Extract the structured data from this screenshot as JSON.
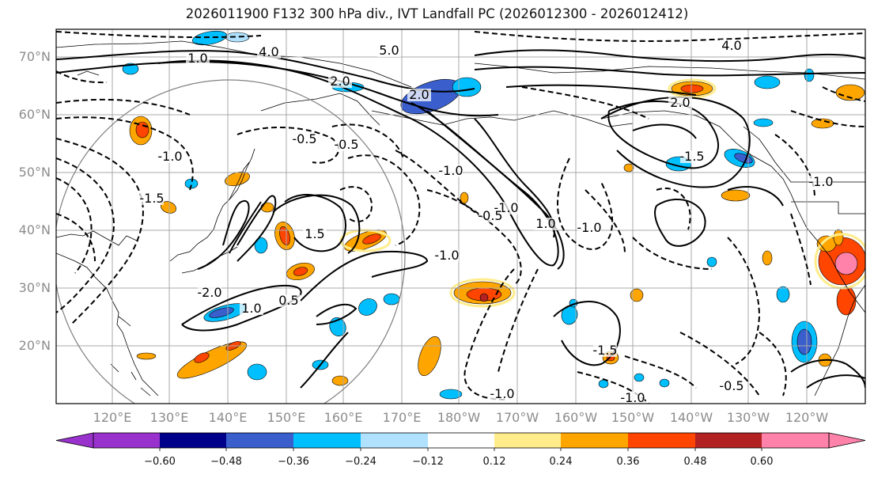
{
  "title": "2026011900 F132 300 hPa div., IVT Landfall PC (2026012300 - 2026012412)",
  "lat_labels": [
    "70°N",
    "60°N",
    "50°N",
    "40°N",
    "30°N",
    "20°N"
  ],
  "lon_labels": [
    "120°E",
    "130°E",
    "140°E",
    "150°E",
    "160°E",
    "170°E",
    "180°W",
    "170°W",
    "160°W",
    "150°W",
    "140°W",
    "130°W",
    "120°W"
  ],
  "contour_labels": [
    "-0.5",
    "-0.5",
    "-1.0",
    "-1.0",
    "-1.5",
    "-1.0",
    "-2.0",
    "1.0",
    "1.5",
    "2.0",
    "2.0",
    "4.0",
    "5.0",
    "4.0",
    "2.0",
    "1.0",
    "-0.5",
    "-1.0",
    "-1.5",
    "-1.0",
    "1.0",
    "0.5",
    "-1.0",
    "-1.0",
    "-1.5",
    "-0.5",
    "-1.0"
  ],
  "colorbar": {
    "colors": [
      "#9932cc",
      "#00008b",
      "#3a5fcd",
      "#00bfff",
      "#b0e2ff",
      "#ffffff",
      "#ffec8b",
      "#ffa500",
      "#ff4500",
      "#b22222",
      "#ff82ab"
    ],
    "ticks": [
      "−0.60",
      "−0.48",
      "−0.36",
      "−0.24",
      "−0.12",
      "0.12",
      "0.24",
      "0.36",
      "0.48",
      "0.60"
    ],
    "extend": "both"
  },
  "fill_colors": {
    "orange": "#ffa500",
    "red": "#ff4500",
    "darkred": "#b22222",
    "yellow": "#ffec8b",
    "lightblue": "#b0e2ff",
    "blue": "#00bfff",
    "royal": "#3a5fcd",
    "pink": "#ff82ab"
  }
}
